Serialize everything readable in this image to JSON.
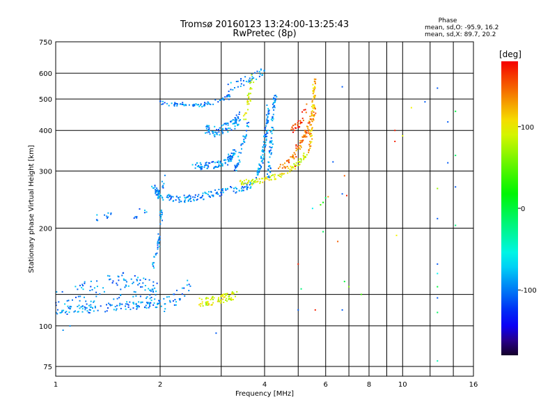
{
  "chart_data": {
    "type": "scatter",
    "title": "Tromsø 20160123 13:24:00-13:25:43",
    "subtitle": "RwPretec (8p)",
    "xlabel": "Frequency [MHz]",
    "ylabel": "Stationary phase Virtual Height [km]",
    "x_scale": "log",
    "y_scale": "log",
    "xlim": [
      1,
      16
    ],
    "ylim": [
      70,
      750
    ],
    "x_ticks": [
      1,
      2,
      4,
      6,
      8,
      10,
      16
    ],
    "x_tick_labels": [
      "1",
      "2",
      "4",
      "6",
      "8",
      "10",
      "16"
    ],
    "x_minor_ticks": [
      3,
      5,
      7,
      9,
      12,
      14
    ],
    "y_ticks": [
      75,
      100,
      200,
      300,
      400,
      500,
      600,
      750
    ],
    "y_tick_labels": [
      "75",
      "100",
      "200",
      "300",
      "400",
      "500",
      "600",
      "750"
    ],
    "y_minor_ticks": [
      125
    ],
    "grid": true,
    "phase_stats": {
      "title": "Phase",
      "o_line": "mean, sd,O: -95.9, 16.2",
      "x_line": "mean, sd,X:  89.7, 20.2"
    },
    "colorbar": {
      "label": "[deg]",
      "range": [
        -180,
        180
      ],
      "ticks": [
        -100,
        0,
        100
      ],
      "tick_labels": [
        "-100",
        "0",
        "100"
      ]
    },
    "traces": [
      {
        "f": [
          1.0,
          1.15,
          1.3,
          1.5,
          1.7,
          1.9,
          2.0
        ],
        "h": [
          110,
          112,
          113,
          115,
          116,
          117,
          118
        ],
        "spread": 0.03,
        "n": 110,
        "phase": -95
      },
      {
        "f": [
          1.0,
          1.2,
          1.4,
          1.6,
          1.8,
          1.95
        ],
        "h": [
          118,
          125,
          130,
          135,
          130,
          125
        ],
        "spread": 0.09,
        "n": 120,
        "phase": -95
      },
      {
        "f": [
          1.9,
          2.0,
          2.05
        ],
        "h": [
          150,
          190,
          290
        ],
        "spread": 0.03,
        "n": 45,
        "phase": -95
      },
      {
        "f": [
          2.0,
          2.2,
          2.45
        ],
        "h": [
          115,
          120,
          135
        ],
        "spread": 0.05,
        "n": 30,
        "phase": -95
      },
      {
        "f": [
          1.3,
          1.45
        ],
        "h": [
          215,
          220
        ],
        "spread": 0.02,
        "n": 12,
        "phase": -95
      },
      {
        "f": [
          1.6,
          1.85
        ],
        "h": [
          215,
          230
        ],
        "spread": 0.03,
        "n": 8,
        "phase": -95
      },
      {
        "f": [
          1.9,
          2.0,
          2.3,
          2.7,
          3.2,
          3.7
        ],
        "h": [
          270,
          250,
          245,
          252,
          262,
          272
        ],
        "spread": 0.025,
        "n": 170,
        "phase": -95
      },
      {
        "f": [
          2.5,
          2.8,
          3.1,
          3.3
        ],
        "h": [
          310,
          312,
          320,
          345
        ],
        "spread": 0.025,
        "n": 90,
        "phase": -95
      },
      {
        "f": [
          2.7,
          2.9,
          3.2,
          3.4
        ],
        "h": [
          400,
          395,
          410,
          440
        ],
        "spread": 0.04,
        "n": 90,
        "phase": -95
      },
      {
        "f": [
          2.0,
          2.3,
          2.6,
          2.9,
          3.2
        ],
        "h": [
          485,
          480,
          478,
          490,
          510
        ],
        "spread": 0.015,
        "n": 70,
        "phase": -95
      },
      {
        "f": [
          3.1,
          3.5,
          3.8,
          4.0
        ],
        "h": [
          540,
          570,
          590,
          610
        ],
        "spread": 0.03,
        "n": 40,
        "phase": -95
      },
      {
        "f": [
          3.8,
          3.95,
          4.05,
          4.1
        ],
        "h": [
          290,
          330,
          400,
          470
        ],
        "spread": 0.02,
        "n": 90,
        "phase": -95
      },
      {
        "f": [
          4.1,
          4.2,
          4.3
        ],
        "h": [
          280,
          390,
          520
        ],
        "spread": 0.03,
        "n": 70,
        "phase": -95
      },
      {
        "f": [
          3.3,
          3.6
        ],
        "h": [
          300,
          420
        ],
        "spread": 0.03,
        "n": 40,
        "phase": -95
      },
      {
        "f": [
          2.6,
          2.9,
          3.3
        ],
        "h": [
          118,
          120,
          125
        ],
        "spread": 0.03,
        "n": 80,
        "phase": 95
      },
      {
        "f": [
          3.4,
          3.9,
          4.4,
          4.9,
          5.3
        ],
        "h": [
          275,
          280,
          290,
          310,
          340
        ],
        "spread": 0.02,
        "n": 100,
        "phase": 95
      },
      {
        "f": [
          4.4,
          4.9,
          5.3,
          5.6
        ],
        "h": [
          300,
          340,
          400,
          470
        ],
        "spread": 0.025,
        "n": 90,
        "phase": 140
      },
      {
        "f": [
          5.4,
          5.5,
          5.6
        ],
        "h": [
          350,
          450,
          590
        ],
        "spread": 0.03,
        "n": 70,
        "phase": 120
      },
      {
        "f": [
          3.5,
          3.6,
          3.7
        ],
        "h": [
          420,
          500,
          580
        ],
        "spread": 0.03,
        "n": 30,
        "phase": 95
      },
      {
        "f": [
          4.8,
          5.1,
          5.3
        ],
        "h": [
          400,
          430,
          470
        ],
        "spread": 0.03,
        "n": 30,
        "phase": 160
      }
    ],
    "points": [
      {
        "f": 6.7,
        "h": 545,
        "phase": -110
      },
      {
        "f": 6.3,
        "h": 320,
        "phase": -110
      },
      {
        "f": 6.8,
        "h": 290,
        "phase": 150
      },
      {
        "f": 6.7,
        "h": 255,
        "phase": -110
      },
      {
        "f": 6.9,
        "h": 252,
        "phase": 170
      },
      {
        "f": 6.1,
        "h": 250,
        "phase": 130
      },
      {
        "f": 6.0,
        "h": 248,
        "phase": -10
      },
      {
        "f": 5.9,
        "h": 240,
        "phase": 20
      },
      {
        "f": 5.8,
        "h": 236,
        "phase": 40
      },
      {
        "f": 5.5,
        "h": 230,
        "phase": -60
      },
      {
        "f": 6.5,
        "h": 182,
        "phase": 150
      },
      {
        "f": 5.9,
        "h": 195,
        "phase": -10
      },
      {
        "f": 5.0,
        "h": 155,
        "phase": 170
      },
      {
        "f": 5.6,
        "h": 112,
        "phase": 170
      },
      {
        "f": 6.7,
        "h": 112,
        "phase": -110
      },
      {
        "f": 7.0,
        "h": 132,
        "phase": 60
      },
      {
        "f": 6.8,
        "h": 137,
        "phase": 0
      },
      {
        "f": 7.6,
        "h": 125,
        "phase": 40
      },
      {
        "f": 5.0,
        "h": 112,
        "phase": -110
      },
      {
        "f": 4.9,
        "h": 310,
        "phase": 170
      },
      {
        "f": 5.1,
        "h": 130,
        "phase": -20
      },
      {
        "f": 9.5,
        "h": 400,
        "phase": 170
      },
      {
        "f": 9.5,
        "h": 370,
        "phase": 170
      },
      {
        "f": 10.0,
        "h": 385,
        "phase": 95
      },
      {
        "f": 10.6,
        "h": 470,
        "phase": 100
      },
      {
        "f": 9.6,
        "h": 190,
        "phase": 100
      },
      {
        "f": 12.6,
        "h": 540,
        "phase": -110
      },
      {
        "f": 13.5,
        "h": 425,
        "phase": -110
      },
      {
        "f": 14.2,
        "h": 458,
        "phase": 0
      },
      {
        "f": 11.6,
        "h": 490,
        "phase": -110
      },
      {
        "f": 13.5,
        "h": 318,
        "phase": -110
      },
      {
        "f": 12.6,
        "h": 265,
        "phase": 70
      },
      {
        "f": 14.2,
        "h": 268,
        "phase": -110
      },
      {
        "f": 14.2,
        "h": 335,
        "phase": -10
      },
      {
        "f": 12.6,
        "h": 214,
        "phase": -110
      },
      {
        "f": 14.2,
        "h": 204,
        "phase": -20
      },
      {
        "f": 12.6,
        "h": 155,
        "phase": -110
      },
      {
        "f": 12.6,
        "h": 145,
        "phase": -60
      },
      {
        "f": 12.6,
        "h": 132,
        "phase": 0
      },
      {
        "f": 12.6,
        "h": 122,
        "phase": -110
      },
      {
        "f": 12.6,
        "h": 110,
        "phase": -10
      },
      {
        "f": 12.6,
        "h": 78,
        "phase": -40
      },
      {
        "f": 2.9,
        "h": 95,
        "phase": -110
      },
      {
        "f": 1.05,
        "h": 97,
        "phase": -95
      },
      {
        "f": 1.1,
        "h": 100,
        "phase": -95
      }
    ]
  }
}
